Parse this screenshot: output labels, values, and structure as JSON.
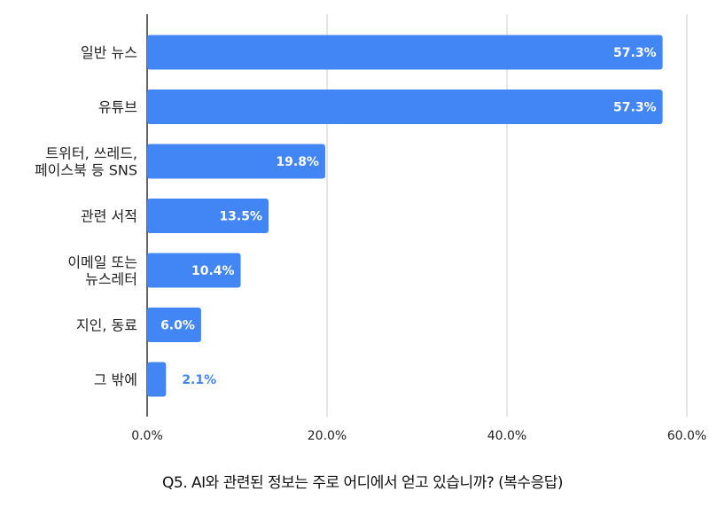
{
  "chart_data": {
    "type": "bar",
    "orientation": "horizontal",
    "categories": [
      [
        "일반 뉴스"
      ],
      [
        "유튜브"
      ],
      [
        "트위터, 쓰레드,",
        "페이스북 등 SNS"
      ],
      [
        "관련 서적"
      ],
      [
        "이메일 또는",
        "뉴스레터"
      ],
      [
        "지인, 동료"
      ],
      [
        "그 밖에"
      ]
    ],
    "values": [
      57.3,
      57.3,
      19.8,
      13.5,
      10.4,
      6.0,
      2.1
    ],
    "data_labels": [
      "57.3%",
      "57.3%",
      "19.8%",
      "13.5%",
      "10.4%",
      "6.0%",
      "2.1%"
    ],
    "xlim": [
      0,
      60
    ],
    "x_ticks": [
      0,
      20,
      40,
      60
    ],
    "x_tick_labels": [
      "0.0%",
      "20.0%",
      "40.0%",
      "60.0%"
    ],
    "grid": true,
    "bar_color": "#4285f4",
    "caption": "Q5. AI와 관련된 정보는 주로 어디에서 얻고 있습니까? (복수응답)"
  }
}
